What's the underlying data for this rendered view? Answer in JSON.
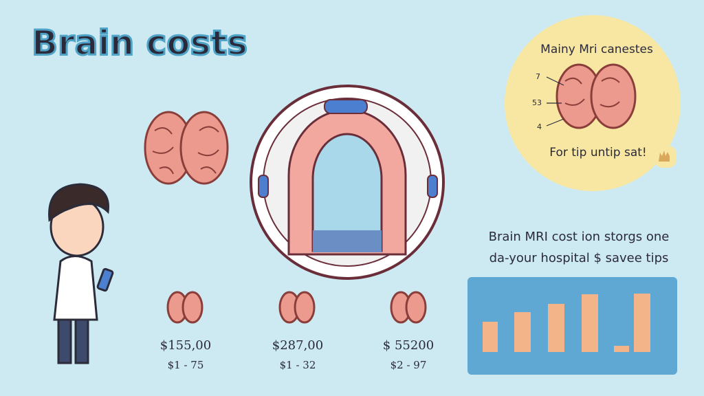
{
  "header": {
    "title": "Brain costs"
  },
  "bubble": {
    "title": "Mainy Mri canestes",
    "labels": [
      "7",
      "53",
      "4"
    ],
    "footer": "For tip untip sat!"
  },
  "prices": [
    {
      "price": "$155,00",
      "range": "$1 - 75"
    },
    {
      "price": "$287,00",
      "range": "$1 - 32"
    },
    {
      "price": "$ 55200",
      "range": "$2 - 97"
    }
  ],
  "info": {
    "lines": [
      "Brain MRI cost ion storgs one",
      "da-your hospital $ savee tips"
    ]
  }
}
